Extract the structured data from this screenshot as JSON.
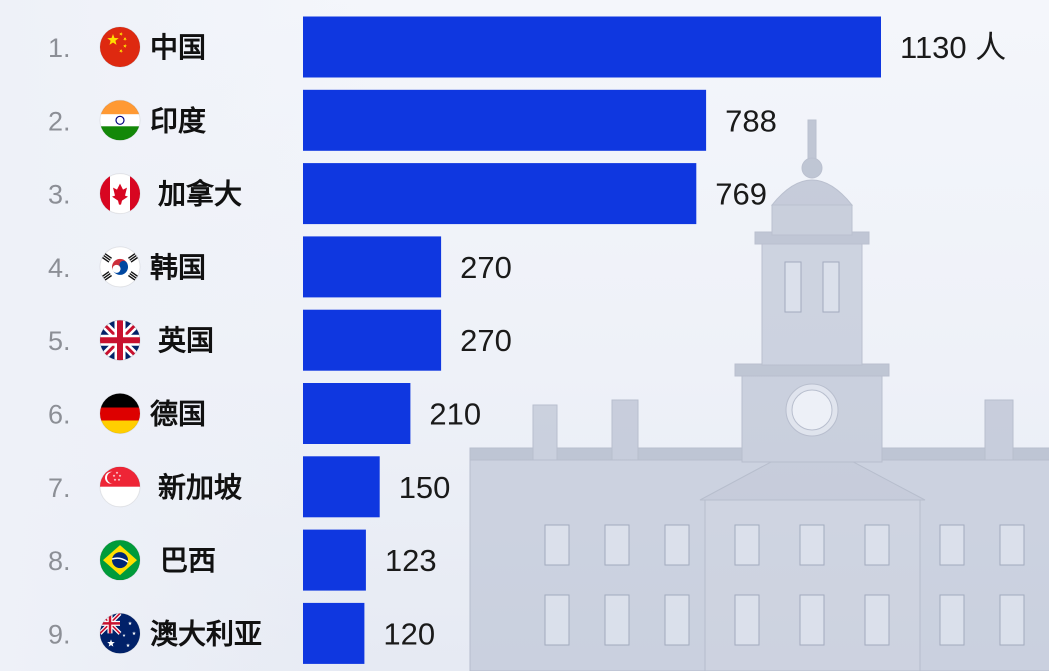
{
  "colors": {
    "bar": "#0f37e0",
    "rank": "#8c8f96",
    "label": "#111111",
    "value": "#1a1a1a"
  },
  "chart_data": {
    "type": "bar",
    "orientation": "horizontal",
    "unit": "人",
    "xlim": [
      0,
      1130
    ],
    "grid": false,
    "categories": [
      "中国",
      "印度",
      "加拿大",
      "韩国",
      "英国",
      "德国",
      "新加坡",
      "巴西",
      "澳大利亚"
    ],
    "ranks": [
      "1.",
      "2.",
      "3.",
      "4.",
      "5.",
      "6.",
      "7.",
      "8.",
      "9."
    ],
    "values": [
      1130,
      788,
      769,
      270,
      270,
      210,
      150,
      123,
      120
    ],
    "value_labels": [
      "1130 人",
      "788",
      "769",
      "270",
      "270",
      "210",
      "150",
      "123",
      "120"
    ],
    "flag_icons": [
      "china-flag-icon",
      "india-flag-icon",
      "canada-flag-icon",
      "south-korea-flag-icon",
      "uk-flag-icon",
      "germany-flag-icon",
      "singapore-flag-icon",
      "brazil-flag-icon",
      "australia-flag-icon"
    ]
  }
}
